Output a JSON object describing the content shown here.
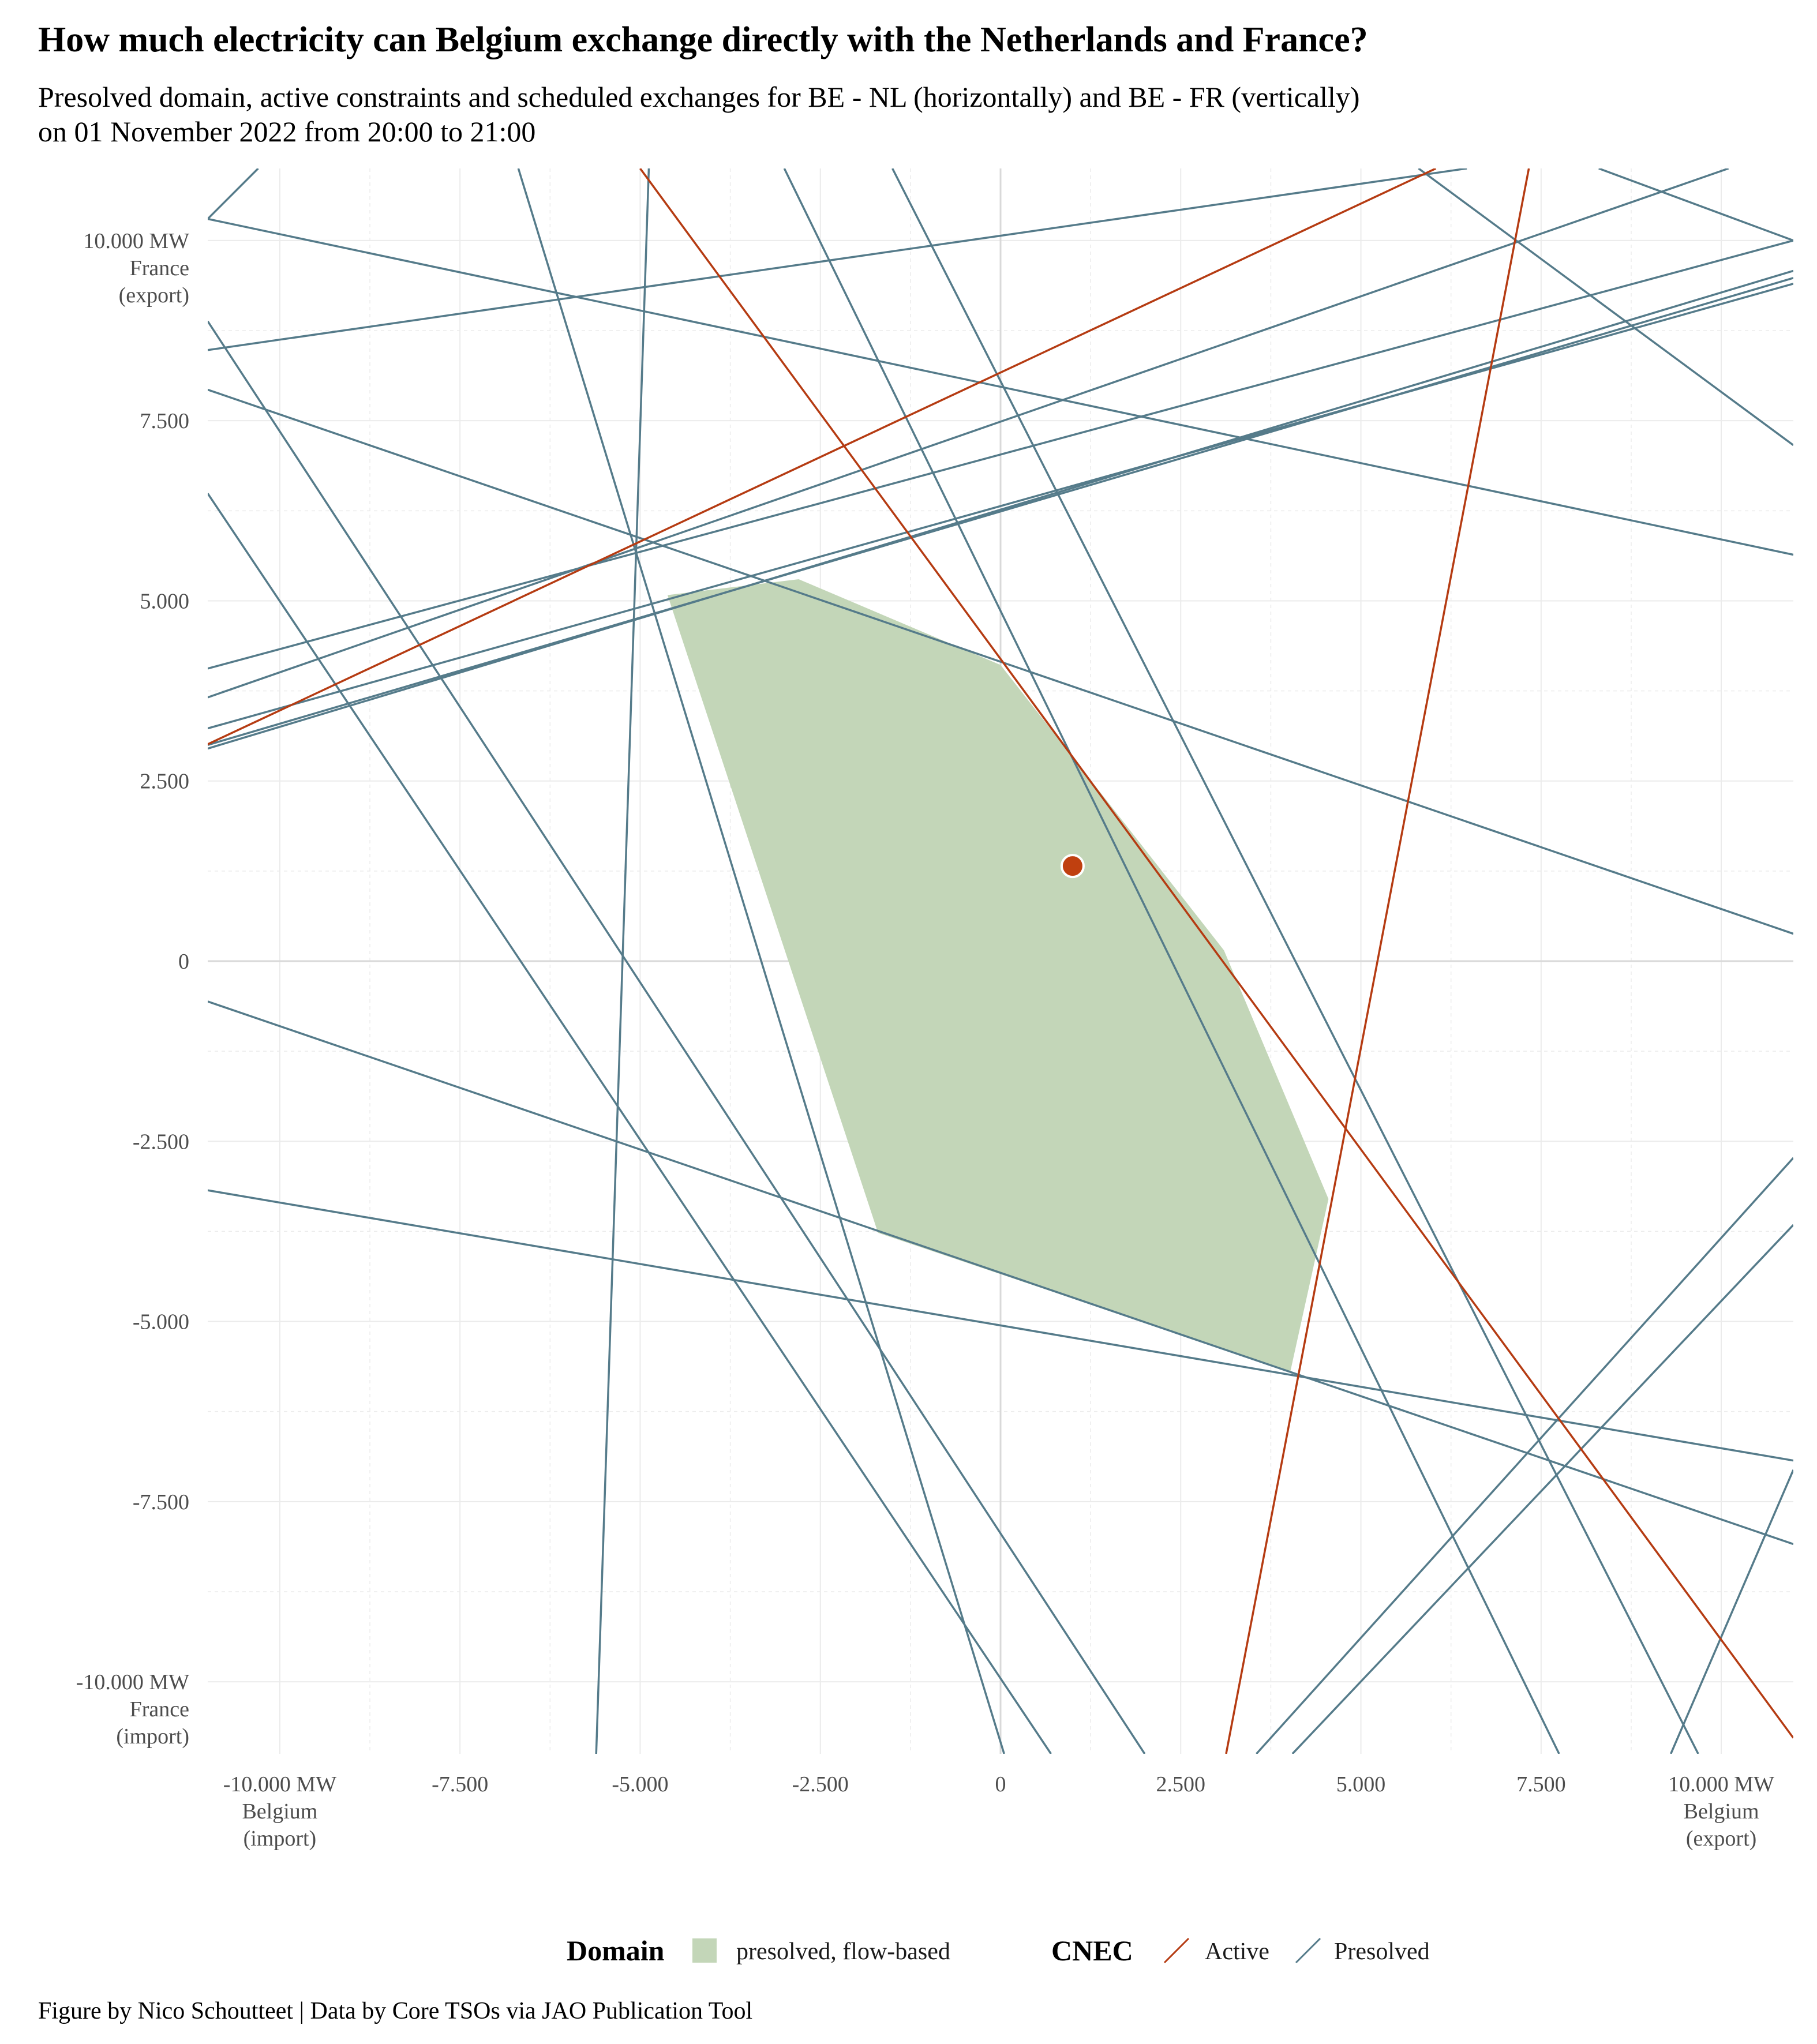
{
  "title": "How much electricity can Belgium exchange directly with the Netherlands and France?",
  "subtitle_lines": [
    "Presolved domain, active constraints and scheduled exchanges for BE - NL (horizontally) and BE - FR (vertically)",
    "on 01 November 2022 from 20:00 to 21:00"
  ],
  "caption": "Figure by Nico Schoutteet | Data by Core TSOs via JAO Publication Tool",
  "colors": {
    "domain_fill": "#c3d6b8",
    "active": "#b53b12",
    "presolved": "#557b8a",
    "grid": "#ebebeb",
    "zero_line": "#d9d9d9",
    "point": "#c0400f"
  },
  "chart_data": {
    "type": "line",
    "xlim": [
      -11000,
      11000
    ],
    "ylim": [
      -11000,
      11000
    ],
    "grid": true,
    "legend_position": "bottom",
    "x_ticks": [
      {
        "value": -10000,
        "lines": [
          "-10.000 MW",
          "Belgium",
          "(import)"
        ]
      },
      {
        "value": -7500,
        "lines": [
          "-7.500"
        ]
      },
      {
        "value": -5000,
        "lines": [
          "-5.000"
        ]
      },
      {
        "value": -2500,
        "lines": [
          "-2.500"
        ]
      },
      {
        "value": 0,
        "lines": [
          "0"
        ]
      },
      {
        "value": 2500,
        "lines": [
          "2.500"
        ]
      },
      {
        "value": 5000,
        "lines": [
          "5.000"
        ]
      },
      {
        "value": 7500,
        "lines": [
          "7.500"
        ]
      },
      {
        "value": 10000,
        "lines": [
          "10.000 MW",
          "Belgium",
          "(export)"
        ]
      }
    ],
    "y_ticks": [
      {
        "value": 10000,
        "lines": [
          "10.000 MW",
          "France",
          "(export)"
        ]
      },
      {
        "value": 7500,
        "lines": [
          "7.500"
        ]
      },
      {
        "value": 5000,
        "lines": [
          "5.000"
        ]
      },
      {
        "value": 2500,
        "lines": [
          "2.500"
        ]
      },
      {
        "value": 0,
        "lines": [
          "0"
        ]
      },
      {
        "value": -2500,
        "lines": [
          "-2.500"
        ]
      },
      {
        "value": -5000,
        "lines": [
          "-5.000"
        ]
      },
      {
        "value": -7500,
        "lines": [
          "-7.500"
        ]
      },
      {
        "value": -10000,
        "lines": [
          "-10.000 MW",
          "France",
          "(import)"
        ]
      }
    ],
    "domain_polygon": [
      [
        -4620,
        5080
      ],
      [
        -2800,
        5300
      ],
      [
        0,
        4110
      ],
      [
        3100,
        150
      ],
      [
        4550,
        -3300
      ],
      [
        4020,
        -5700
      ],
      [
        -1700,
        -3770
      ]
    ],
    "constraints": [
      {
        "status": "Active",
        "x1": -5000,
        "y1": 11000,
        "x2": 11000,
        "y2": -10780
      },
      {
        "status": "Active",
        "x1": 3130,
        "y1": -11000,
        "x2": 7330,
        "y2": 11000
      },
      {
        "status": "Active",
        "x1": -11000,
        "y1": 3010,
        "x2": 6040,
        "y2": 11000
      },
      {
        "status": "Presolved",
        "x1": -11000,
        "y1": 2950,
        "x2": 11000,
        "y2": 9580
      },
      {
        "status": "Presolved",
        "x1": -11000,
        "y1": 3000,
        "x2": 11000,
        "y2": 9480
      },
      {
        "status": "Presolved",
        "x1": -11000,
        "y1": 3230,
        "x2": 11000,
        "y2": 9400
      },
      {
        "status": "Presolved",
        "x1": -11000,
        "y1": 3660,
        "x2": 10100,
        "y2": 11000
      },
      {
        "status": "Presolved",
        "x1": -11000,
        "y1": 4060,
        "x2": 11000,
        "y2": 10000
      },
      {
        "status": "Presolved",
        "x1": -11000,
        "y1": 8480,
        "x2": 6470,
        "y2": 11000
      },
      {
        "status": "Presolved",
        "x1": -11000,
        "y1": 10300,
        "x2": 11000,
        "y2": 5640
      },
      {
        "status": "Presolved",
        "x1": -11000,
        "y1": 7930,
        "x2": 11000,
        "y2": 380
      },
      {
        "status": "Presolved",
        "x1": -11000,
        "y1": -560,
        "x2": 11000,
        "y2": -8090
      },
      {
        "status": "Presolved",
        "x1": -11000,
        "y1": -3180,
        "x2": 11000,
        "y2": -6930
      },
      {
        "status": "Presolved",
        "x1": -11000,
        "y1": 8880,
        "x2": 2000,
        "y2": -11000
      },
      {
        "status": "Presolved",
        "x1": -11000,
        "y1": 6490,
        "x2": 700,
        "y2": -11000
      },
      {
        "status": "Presolved",
        "x1": -6690,
        "y1": 11000,
        "x2": 50,
        "y2": -11000
      },
      {
        "status": "Presolved",
        "x1": -3000,
        "y1": 11000,
        "x2": 7750,
        "y2": -11000
      },
      {
        "status": "Presolved",
        "x1": -1500,
        "y1": 11000,
        "x2": 9680,
        "y2": -11000
      },
      {
        "status": "Presolved",
        "x1": -4880,
        "y1": 11000,
        "x2": -5610,
        "y2": -11000
      },
      {
        "status": "Presolved",
        "x1": 3550,
        "y1": -11000,
        "x2": 11000,
        "y2": -2730
      },
      {
        "status": "Presolved",
        "x1": 4050,
        "y1": -11000,
        "x2": 11000,
        "y2": -3660
      },
      {
        "status": "Presolved",
        "x1": 9300,
        "y1": -11000,
        "x2": 11000,
        "y2": -7060
      },
      {
        "status": "Presolved",
        "x1": -11000,
        "y1": 10300,
        "x2": -10300,
        "y2": 11000
      },
      {
        "status": "Presolved",
        "x1": 5800,
        "y1": 11000,
        "x2": 11000,
        "y2": 7160
      },
      {
        "status": "Presolved",
        "x1": 8300,
        "y1": 11000,
        "x2": 11000,
        "y2": 10000
      }
    ],
    "scheduled_exchange": {
      "x": 1000,
      "y": 1320
    }
  },
  "legend": {
    "domain_title": "Domain",
    "domain_label": "presolved, flow-based",
    "cnec_title": "CNEC",
    "active_label": "Active",
    "presolved_label": "Presolved"
  }
}
